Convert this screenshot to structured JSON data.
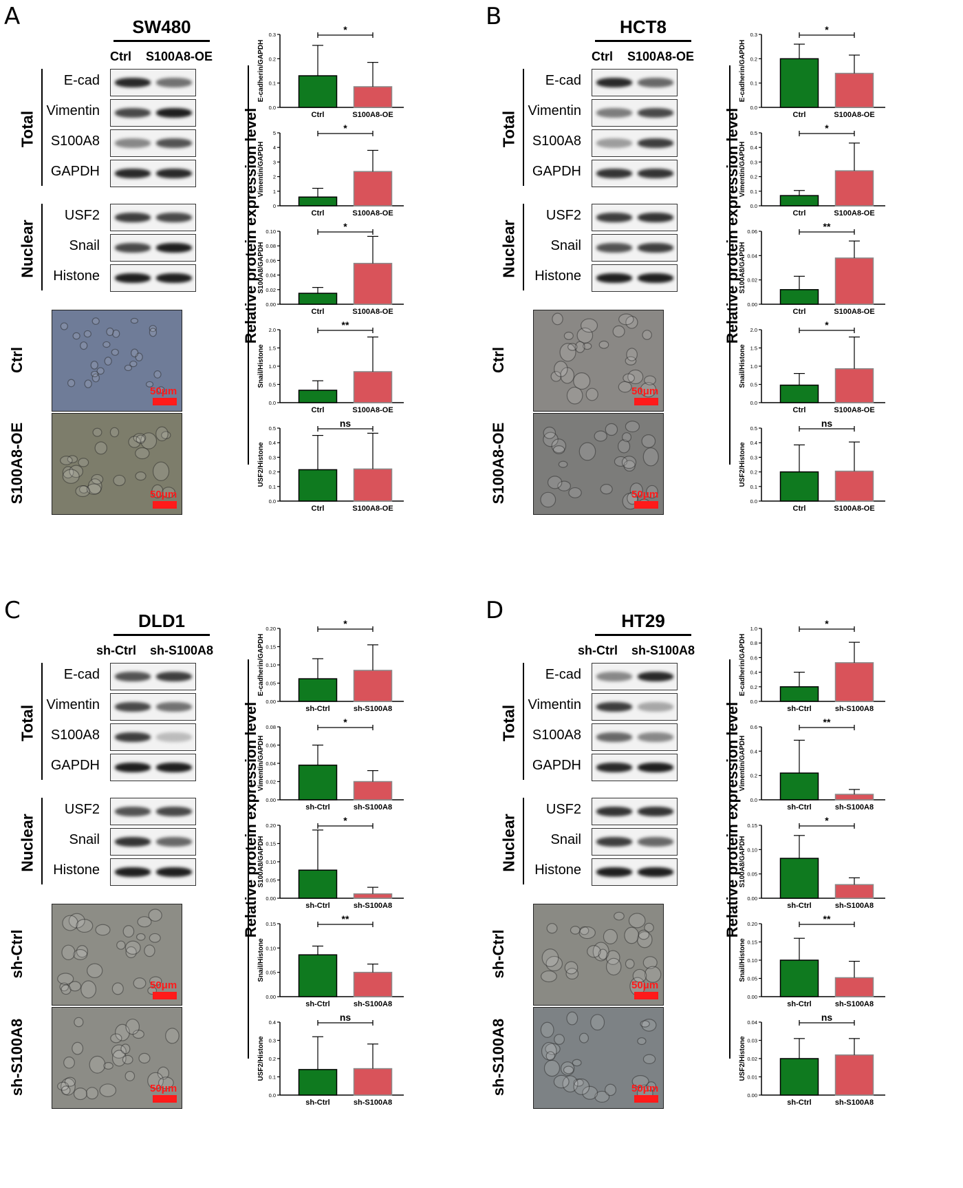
{
  "colors": {
    "ctrl_bar": "#0f7a1f",
    "treat_bar": "#d9535a",
    "scale_bar": "#ff1a1a"
  },
  "y_axis_group_label": "Relative protein expression level",
  "scale_bar_label": "50μm",
  "group_labels": {
    "total": "Total",
    "nuclear": "Nuclear"
  },
  "panels": [
    {
      "id": "A",
      "letter": "A",
      "cell_line": "SW480",
      "conditions": [
        "Ctrl",
        "S100A8-OE"
      ],
      "total_proteins": [
        "E-cad",
        "Vimentin",
        "S100A8",
        "GAPDH"
      ],
      "nuclear_proteins": [
        "USF2",
        "Snail",
        "Histone"
      ],
      "image_rows": [
        "Ctrl",
        "S100A8-OE"
      ],
      "chart_data": [
        {
          "type": "bar",
          "ylabel": "E-cadherin/GAPDH",
          "categories": [
            "Ctrl",
            "S100A8-OE"
          ],
          "values": [
            0.13,
            0.085
          ],
          "errors": [
            0.125,
            0.1
          ],
          "ylim": [
            0,
            0.3
          ],
          "yticks": [
            "0.0",
            "0.1",
            "0.2",
            "0.3"
          ],
          "significance": "*"
        },
        {
          "type": "bar",
          "ylabel": "Vimentin/GAPDH",
          "categories": [
            "Ctrl",
            "S100A8-OE"
          ],
          "values": [
            0.6,
            2.35
          ],
          "errors": [
            0.6,
            1.45
          ],
          "ylim": [
            0,
            5
          ],
          "yticks": [
            "0",
            "1",
            "2",
            "3",
            "4",
            "5"
          ],
          "significance": "*"
        },
        {
          "type": "bar",
          "ylabel": "S100A8/GAPDH",
          "categories": [
            "Ctrl",
            "S100A8-OE"
          ],
          "values": [
            0.015,
            0.056
          ],
          "errors": [
            0.008,
            0.037
          ],
          "ylim": [
            0,
            0.1
          ],
          "yticks": [
            "0.00",
            "0.02",
            "0.04",
            "0.06",
            "0.08",
            "0.10"
          ],
          "significance": "*"
        },
        {
          "type": "bar",
          "ylabel": "Snail/Histone",
          "categories": [
            "Ctrl",
            "S100A8-OE"
          ],
          "values": [
            0.34,
            0.85
          ],
          "errors": [
            0.26,
            0.95
          ],
          "ylim": [
            0,
            2.0
          ],
          "yticks": [
            "0.0",
            "0.5",
            "1.0",
            "1.5",
            "2.0"
          ],
          "significance": "**"
        },
        {
          "type": "bar",
          "ylabel": "USF2/Histone",
          "categories": [
            "Ctrl",
            "S100A8-OE"
          ],
          "values": [
            0.215,
            0.22
          ],
          "errors": [
            0.235,
            0.245
          ],
          "ylim": [
            0,
            0.5
          ],
          "yticks": [
            "0.0",
            "0.1",
            "0.2",
            "0.3",
            "0.4",
            "0.5"
          ],
          "significance": "ns"
        }
      ]
    },
    {
      "id": "B",
      "letter": "B",
      "cell_line": "HCT8",
      "conditions": [
        "Ctrl",
        "S100A8-OE"
      ],
      "total_proteins": [
        "E-cad",
        "Vimentin",
        "S100A8",
        "GAPDH"
      ],
      "nuclear_proteins": [
        "USF2",
        "Snail",
        "Histone"
      ],
      "image_rows": [
        "Ctrl",
        "S100A8-OE"
      ],
      "chart_data": [
        {
          "type": "bar",
          "ylabel": "E-cadherin/GAPDH",
          "categories": [
            "Ctrl",
            "S100A8-OE"
          ],
          "values": [
            0.2,
            0.14
          ],
          "errors": [
            0.06,
            0.075
          ],
          "ylim": [
            0,
            0.3
          ],
          "yticks": [
            "0.0",
            "0.1",
            "0.2",
            "0.3"
          ],
          "significance": "*"
        },
        {
          "type": "bar",
          "ylabel": "Vimentin/GAPDH",
          "categories": [
            "Ctrl",
            "S100A8-OE"
          ],
          "values": [
            0.07,
            0.24
          ],
          "errors": [
            0.035,
            0.19
          ],
          "ylim": [
            0,
            0.5
          ],
          "yticks": [
            "0.0",
            "0.1",
            "0.2",
            "0.3",
            "0.4",
            "0.5"
          ],
          "significance": "*"
        },
        {
          "type": "bar",
          "ylabel": "S100A8/GAPDH",
          "categories": [
            "Ctrl",
            "S100A8-OE"
          ],
          "values": [
            0.012,
            0.038
          ],
          "errors": [
            0.011,
            0.014
          ],
          "ylim": [
            0,
            0.06
          ],
          "yticks": [
            "0.00",
            "0.02",
            "0.04",
            "0.06"
          ],
          "significance": "**"
        },
        {
          "type": "bar",
          "ylabel": "Snail/Histone",
          "categories": [
            "Ctrl",
            "S100A8-OE"
          ],
          "values": [
            0.48,
            0.93
          ],
          "errors": [
            0.32,
            0.87
          ],
          "ylim": [
            0,
            2.0
          ],
          "yticks": [
            "0.0",
            "0.5",
            "1.0",
            "1.5",
            "2.0"
          ],
          "significance": "*"
        },
        {
          "type": "bar",
          "ylabel": "USF2/Histone",
          "categories": [
            "Ctrl",
            "S100A8-OE"
          ],
          "values": [
            0.2,
            0.205
          ],
          "errors": [
            0.185,
            0.2
          ],
          "ylim": [
            0,
            0.5
          ],
          "yticks": [
            "0.0",
            "0.1",
            "0.2",
            "0.3",
            "0.4",
            "0.5"
          ],
          "significance": "ns"
        }
      ]
    },
    {
      "id": "C",
      "letter": "C",
      "cell_line": "DLD1",
      "conditions": [
        "sh-Ctrl",
        "sh-S100A8"
      ],
      "total_proteins": [
        "E-cad",
        "Vimentin",
        "S100A8",
        "GAPDH"
      ],
      "nuclear_proteins": [
        "USF2",
        "Snail",
        "Histone"
      ],
      "image_rows": [
        "sh-Ctrl",
        "sh-S100A8"
      ],
      "chart_data": [
        {
          "type": "bar",
          "ylabel": "E-cadherin/GAPDH",
          "categories": [
            "sh-Ctrl",
            "sh-S100A8"
          ],
          "values": [
            0.062,
            0.085
          ],
          "errors": [
            0.055,
            0.07
          ],
          "ylim": [
            0,
            0.2
          ],
          "yticks": [
            "0.00",
            "0.05",
            "0.10",
            "0.15",
            "0.20"
          ],
          "significance": "*"
        },
        {
          "type": "bar",
          "ylabel": "Vimentin/GAPDH",
          "categories": [
            "sh-Ctrl",
            "sh-S100A8"
          ],
          "values": [
            0.038,
            0.02
          ],
          "errors": [
            0.022,
            0.012
          ],
          "ylim": [
            0,
            0.08
          ],
          "yticks": [
            "0.00",
            "0.02",
            "0.04",
            "0.06",
            "0.08"
          ],
          "significance": "*"
        },
        {
          "type": "bar",
          "ylabel": "S100A8/GAPDH",
          "categories": [
            "sh-Ctrl",
            "sh-S100A8"
          ],
          "values": [
            0.077,
            0.012
          ],
          "errors": [
            0.11,
            0.018
          ],
          "ylim": [
            0,
            0.2
          ],
          "yticks": [
            "0.00",
            "0.05",
            "0.10",
            "0.15",
            "0.20"
          ],
          "significance": "*"
        },
        {
          "type": "bar",
          "ylabel": "Snail/Histone",
          "categories": [
            "sh-Ctrl",
            "sh-S100A8"
          ],
          "values": [
            0.086,
            0.05
          ],
          "errors": [
            0.018,
            0.017
          ],
          "ylim": [
            0,
            0.15
          ],
          "yticks": [
            "0.00",
            "0.05",
            "0.10",
            "0.15"
          ],
          "significance": "**"
        },
        {
          "type": "bar",
          "ylabel": "USF2/Histone",
          "categories": [
            "sh-Ctrl",
            "sh-S100A8"
          ],
          "values": [
            0.14,
            0.145
          ],
          "errors": [
            0.18,
            0.135
          ],
          "ylim": [
            0,
            0.4
          ],
          "yticks": [
            "0.0",
            "0.1",
            "0.2",
            "0.3",
            "0.4"
          ],
          "significance": "ns"
        }
      ]
    },
    {
      "id": "D",
      "letter": "D",
      "cell_line": "HT29",
      "conditions": [
        "sh-Ctrl",
        "sh-S100A8"
      ],
      "total_proteins": [
        "E-cad",
        "Vimentin",
        "S100A8",
        "GAPDH"
      ],
      "nuclear_proteins": [
        "USF2",
        "Snail",
        "Histone"
      ],
      "image_rows": [
        "sh-Ctrl",
        "sh-S100A8"
      ],
      "chart_data": [
        {
          "type": "bar",
          "ylabel": "E-cadherin/GAPDH",
          "categories": [
            "sh-Ctrl",
            "sh-S100A8"
          ],
          "values": [
            0.2,
            0.53
          ],
          "errors": [
            0.2,
            0.28
          ],
          "ylim": [
            0,
            1.0
          ],
          "yticks": [
            "0.0",
            "0.2",
            "0.4",
            "0.6",
            "0.8",
            "1.0"
          ],
          "significance": "*"
        },
        {
          "type": "bar",
          "ylabel": "Vimentin/GAPDH",
          "categories": [
            "sh-Ctrl",
            "sh-S100A8"
          ],
          "values": [
            0.22,
            0.045
          ],
          "errors": [
            0.27,
            0.04
          ],
          "ylim": [
            0,
            0.6
          ],
          "yticks": [
            "0.0",
            "0.2",
            "0.4",
            "0.6"
          ],
          "significance": "**"
        },
        {
          "type": "bar",
          "ylabel": "S100A8/GAPDH",
          "categories": [
            "sh-Ctrl",
            "sh-S100A8"
          ],
          "values": [
            0.082,
            0.028
          ],
          "errors": [
            0.047,
            0.014
          ],
          "ylim": [
            0,
            0.15
          ],
          "yticks": [
            "0.00",
            "0.05",
            "0.10",
            "0.15"
          ],
          "significance": "*"
        },
        {
          "type": "bar",
          "ylabel": "Snail/Histone",
          "categories": [
            "sh-Ctrl",
            "sh-S100A8"
          ],
          "values": [
            0.1,
            0.052
          ],
          "errors": [
            0.06,
            0.045
          ],
          "ylim": [
            0,
            0.2
          ],
          "yticks": [
            "0.00",
            "0.05",
            "0.10",
            "0.15",
            "0.20"
          ],
          "significance": "**"
        },
        {
          "type": "bar",
          "ylabel": "USF2/Histone",
          "categories": [
            "sh-Ctrl",
            "sh-S100A8"
          ],
          "values": [
            0.02,
            0.022
          ],
          "errors": [
            0.011,
            0.009
          ],
          "ylim": [
            0,
            0.04
          ],
          "yticks": [
            "0.00",
            "0.01",
            "0.02",
            "0.03",
            "0.04"
          ],
          "significance": "ns"
        }
      ]
    }
  ]
}
